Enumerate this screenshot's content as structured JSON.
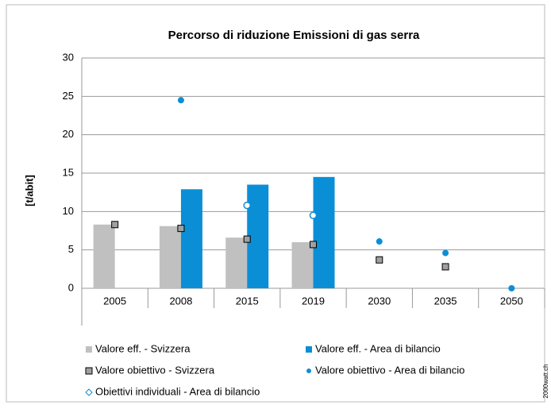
{
  "chart_data": {
    "type": "bar",
    "title": "Percorso di riduzione Emissioni di gas serra",
    "y_label": "[t/abit]",
    "watermark": "2000watt.ch",
    "categories": [
      "2005",
      "2008",
      "2015",
      "2019",
      "2030",
      "2035",
      "2050"
    ],
    "ylim": [
      0,
      30
    ],
    "yticks": [
      0,
      5,
      10,
      15,
      20,
      25,
      30
    ],
    "grid": true,
    "series": [
      {
        "name": "Valore eff. - Svizzera",
        "type": "bar",
        "color": "#c0c0c0",
        "values": [
          8.3,
          8.1,
          6.6,
          6.0,
          null,
          null,
          null
        ]
      },
      {
        "name": "Valore eff. - Area di bilancio",
        "type": "bar",
        "color": "#0a8fd6",
        "values": [
          null,
          12.9,
          13.5,
          14.5,
          null,
          null,
          null
        ]
      },
      {
        "name": "Valore obiettivo - Svizzera",
        "type": "square",
        "color": "#a0a0a0",
        "values": [
          8.3,
          7.8,
          6.4,
          5.7,
          3.7,
          2.8,
          null
        ]
      },
      {
        "name": "Valore obiettivo - Area di bilancio",
        "type": "dot",
        "color": "#0a8fd6",
        "values": [
          null,
          24.5,
          null,
          null,
          6.1,
          4.6,
          0
        ]
      },
      {
        "name": "Obiettivi individuali - Area di bilancio",
        "type": "open",
        "color": "#0a8fd6",
        "values": [
          null,
          null,
          10.8,
          9.5,
          null,
          null,
          null
        ]
      }
    ]
  }
}
